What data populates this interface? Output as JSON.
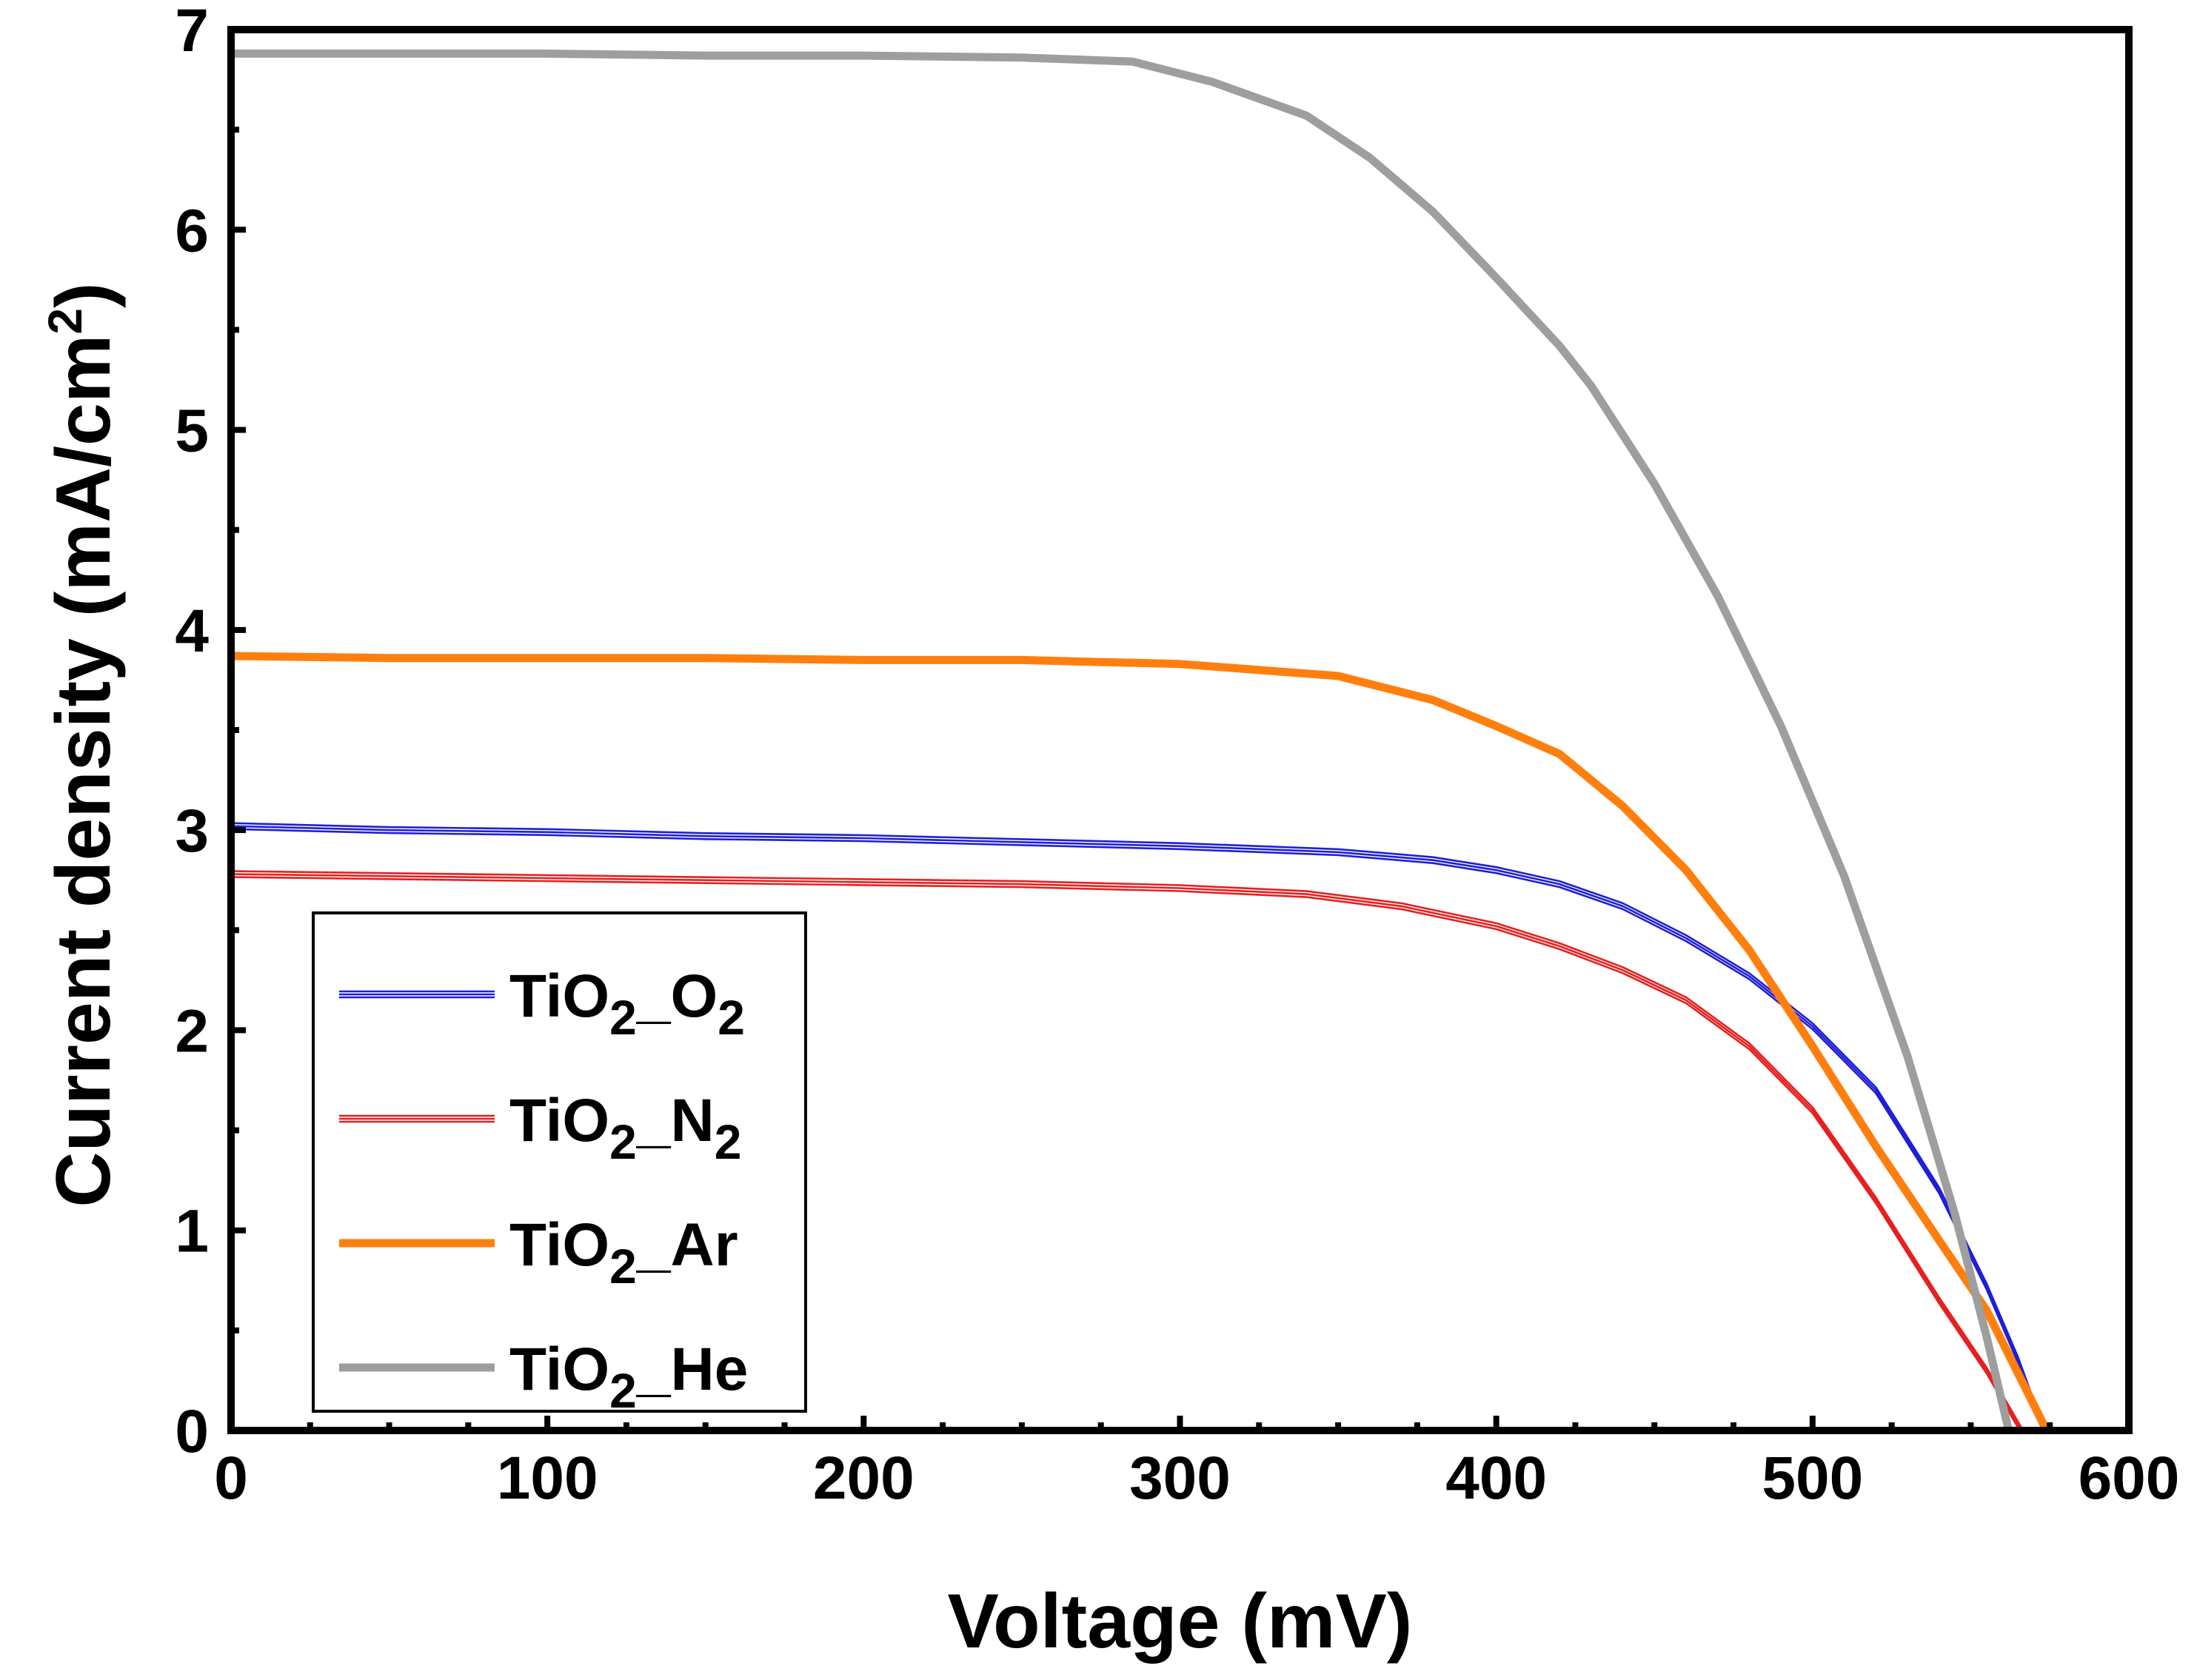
{
  "chart_data": {
    "type": "line",
    "title": "",
    "xlabel": "Voltage (mV)",
    "ylabel": {
      "main": "Current density (mA/cm",
      "superscript": "2",
      "close": ")"
    },
    "xlim": [
      0,
      600
    ],
    "ylim": [
      0,
      7
    ],
    "xticks": [
      0,
      100,
      200,
      300,
      400,
      500,
      600
    ],
    "yticks": [
      0,
      1,
      2,
      3,
      4,
      5,
      6,
      7
    ],
    "x_minor_step": 25,
    "y_minor_step": 0.5,
    "grid": false,
    "legend_position": "bottom-left",
    "series": [
      {
        "name": "TiO2_O2",
        "label_parts": [
          "TiO",
          "2",
          "_O",
          "2"
        ],
        "color": "#1f1fd6",
        "style": "thin",
        "x": [
          0,
          50,
          100,
          150,
          200,
          250,
          300,
          350,
          380,
          400,
          420,
          440,
          460,
          480,
          500,
          520,
          540,
          555,
          565,
          573
        ],
        "y": [
          3.02,
          3.0,
          2.99,
          2.97,
          2.96,
          2.94,
          2.92,
          2.89,
          2.85,
          2.8,
          2.73,
          2.62,
          2.46,
          2.27,
          2.02,
          1.7,
          1.2,
          0.72,
          0.35,
          0.0
        ]
      },
      {
        "name": "TiO2_N2",
        "label_parts": [
          "TiO",
          "2",
          "_N",
          "2"
        ],
        "color": "#e62020",
        "style": "thin",
        "x": [
          0,
          50,
          100,
          150,
          200,
          250,
          300,
          340,
          370,
          400,
          420,
          440,
          460,
          480,
          500,
          520,
          540,
          555,
          566
        ],
        "y": [
          2.78,
          2.77,
          2.76,
          2.75,
          2.74,
          2.73,
          2.71,
          2.68,
          2.62,
          2.52,
          2.42,
          2.3,
          2.15,
          1.92,
          1.6,
          1.15,
          0.65,
          0.3,
          0.0
        ]
      },
      {
        "name": "TiO2_Ar",
        "label_parts": [
          "TiO",
          "2",
          "_Ar"
        ],
        "color": "#ff7f0e",
        "style": "thick",
        "x": [
          0,
          50,
          100,
          150,
          200,
          250,
          300,
          350,
          380,
          400,
          420,
          440,
          460,
          480,
          500,
          520,
          540,
          555,
          574
        ],
        "y": [
          3.87,
          3.86,
          3.86,
          3.86,
          3.85,
          3.85,
          3.83,
          3.77,
          3.65,
          3.52,
          3.38,
          3.12,
          2.8,
          2.4,
          1.92,
          1.42,
          0.95,
          0.6,
          0.0
        ]
      },
      {
        "name": "TiO2_He",
        "label_parts": [
          "TiO",
          "2",
          "_He"
        ],
        "color": "#9e9e9e",
        "style": "thick",
        "x": [
          0,
          50,
          100,
          150,
          200,
          250,
          285,
          310,
          340,
          360,
          380,
          400,
          420,
          430,
          450,
          470,
          490,
          510,
          530,
          545,
          555,
          562
        ],
        "y": [
          6.88,
          6.88,
          6.88,
          6.87,
          6.87,
          6.86,
          6.84,
          6.74,
          6.57,
          6.36,
          6.09,
          5.76,
          5.42,
          5.22,
          4.73,
          4.17,
          3.52,
          2.77,
          1.87,
          1.08,
          0.47,
          0.0
        ]
      }
    ]
  }
}
